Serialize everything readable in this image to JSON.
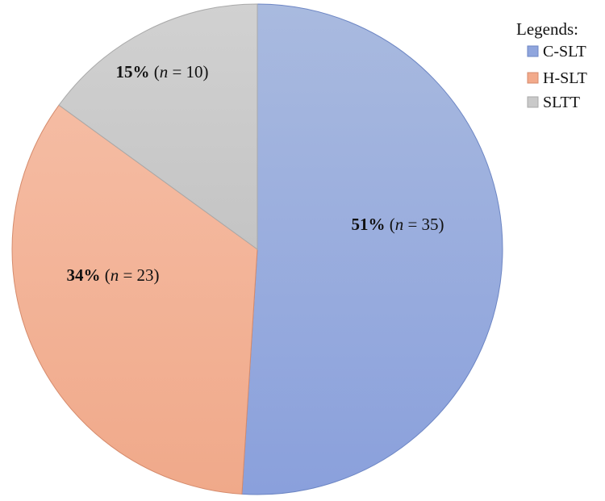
{
  "chart_data": {
    "type": "pie",
    "categories": [
      "C-SLT",
      "H-SLT",
      "SLTT"
    ],
    "values": [
      51,
      34,
      15
    ],
    "counts": [
      35,
      23,
      10
    ],
    "colors": [
      "#8fa5dd",
      "#f2aa8b",
      "#c9c9c9"
    ],
    "labels": [
      {
        "pct": "51%",
        "n_prefix": "(",
        "n_symbol": "n",
        "n_suffix": " = 35)"
      },
      {
        "pct": "34%",
        "n_prefix": "(",
        "n_symbol": "n",
        "n_suffix": " = 23)"
      },
      {
        "pct": "15%",
        "n_prefix": "(",
        "n_symbol": "n",
        "n_suffix": " = 10)"
      }
    ],
    "start_position": "top (12 o'clock), clockwise",
    "legend": {
      "title": "Legends:",
      "position": "top-right",
      "entries": [
        "C-SLT",
        "H-SLT",
        "SLTT"
      ]
    }
  }
}
